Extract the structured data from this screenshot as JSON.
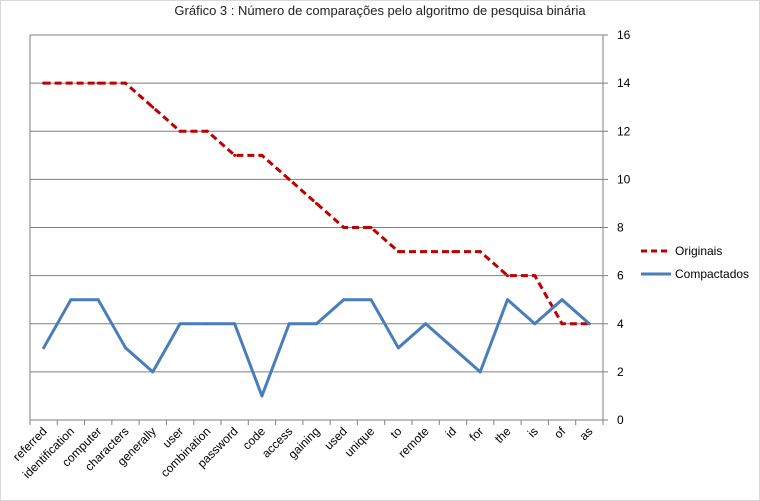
{
  "chart_data": {
    "type": "line",
    "title": "Gráfico 3 : Número de comparações pelo algoritmo de pesquisa binária",
    "xlabel": "",
    "ylabel": "",
    "categories": [
      "referred",
      "identification",
      "computer",
      "characters",
      "generally",
      "user",
      "combination",
      "password",
      "code",
      "access",
      "gaining",
      "used",
      "unique",
      "to",
      "remote",
      "id",
      "for",
      "the",
      "is",
      "of",
      "as"
    ],
    "y_ticks": [
      "0",
      "2",
      "4",
      "6",
      "8",
      "10",
      "12",
      "14",
      "16"
    ],
    "ylim": [
      0,
      16
    ],
    "y_axis_side": "right",
    "grid": true,
    "legend_position": "right",
    "series": [
      {
        "name": "Originais",
        "color": "#c00000",
        "style": "dashed",
        "values": [
          14,
          14,
          14,
          14,
          13,
          12,
          12,
          11,
          11,
          10,
          9,
          8,
          8,
          7,
          7,
          7,
          7,
          6,
          6,
          4,
          4
        ]
      },
      {
        "name": "Compactados",
        "color": "#4a7ebb",
        "style": "solid",
        "values": [
          3,
          5,
          5,
          3,
          2,
          4,
          4,
          4,
          1,
          4,
          4,
          5,
          5,
          3,
          4,
          3,
          2,
          5,
          4,
          5,
          4
        ]
      }
    ]
  }
}
